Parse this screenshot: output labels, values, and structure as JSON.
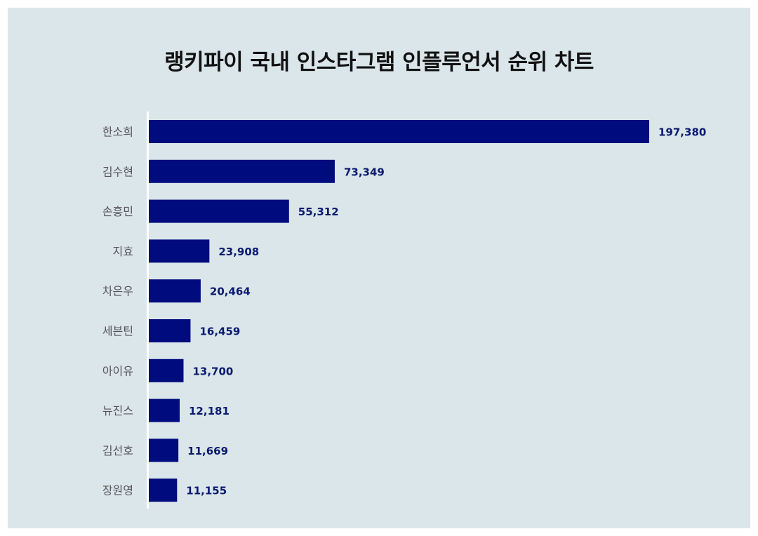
{
  "chart_data": {
    "type": "bar",
    "orientation": "horizontal",
    "title": "랭키파이 국내 인스타그램 인플루언서 순위 차트",
    "categories": [
      "한소희",
      "김수현",
      "손흥민",
      "지효",
      "차은우",
      "세븐틴",
      "아이유",
      "뉴진스",
      "김선호",
      "장원영"
    ],
    "values": [
      197380,
      73349,
      55312,
      23908,
      20464,
      16459,
      13700,
      12181,
      11669,
      11155
    ],
    "value_labels": [
      "197,380",
      "73,349",
      "55,312",
      "23,908",
      "20,464",
      "16,459",
      "13,700",
      "12,181",
      "11,669",
      "11,155"
    ],
    "xlim": [
      0,
      197380
    ],
    "bar_color": "#000c7d",
    "label_color": "#0a1a6e",
    "background_color": "#dbe6eb",
    "grid": false,
    "legend": "none"
  }
}
